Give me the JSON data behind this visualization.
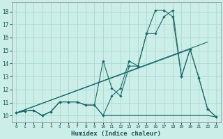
{
  "xlabel": "Humidex (Indice chaleur)",
  "background_color": "#cceee8",
  "grid_color": "#aad8d0",
  "line_color": "#1a6b6b",
  "xlim": [
    -0.5,
    23.5
  ],
  "ylim": [
    9.5,
    18.7
  ],
  "xticks": [
    0,
    1,
    2,
    3,
    4,
    5,
    6,
    7,
    8,
    9,
    10,
    11,
    12,
    13,
    14,
    15,
    16,
    17,
    18,
    19,
    20,
    21,
    22,
    23
  ],
  "yticks": [
    10,
    11,
    12,
    13,
    14,
    15,
    16,
    17,
    18
  ],
  "curve1_x": [
    0,
    1,
    2,
    3,
    4,
    5,
    6,
    7,
    8,
    9,
    10,
    11,
    12,
    13,
    14,
    15,
    16,
    17,
    18,
    19,
    20,
    21,
    22,
    23
  ],
  "curve1_y": [
    10.2,
    10.35,
    10.4,
    10.0,
    10.3,
    11.05,
    11.05,
    11.05,
    10.8,
    10.8,
    10.0,
    11.5,
    12.1,
    14.2,
    13.8,
    16.3,
    18.1,
    18.1,
    17.6,
    13.0,
    15.1,
    12.9,
    10.5,
    9.9
  ],
  "curve2_x": [
    0,
    1,
    2,
    3,
    4,
    5,
    6,
    7,
    8,
    9,
    10,
    11,
    12,
    13,
    14,
    15,
    16,
    17,
    18,
    19,
    20,
    21,
    22,
    23
  ],
  "curve2_y": [
    10.2,
    10.35,
    10.4,
    10.0,
    10.3,
    11.05,
    11.05,
    11.05,
    10.8,
    10.8,
    10.0,
    10.0,
    10.0,
    10.0,
    10.0,
    10.0,
    10.0,
    10.0,
    10.0,
    10.0,
    10.0,
    10.0,
    10.0,
    9.9
  ],
  "trendline1_x": [
    0,
    20
  ],
  "trendline1_y": [
    10.2,
    15.1
  ],
  "trendline2_x": [
    0,
    22
  ],
  "trendline2_y": [
    10.2,
    15.65
  ],
  "curve3_x": [
    0,
    1,
    2,
    3,
    4,
    5,
    6,
    7,
    8,
    9,
    10,
    11,
    12,
    13,
    14,
    15,
    16,
    17,
    18,
    19,
    20,
    21,
    22,
    23
  ],
  "curve3_y": [
    10.2,
    10.35,
    10.4,
    10.0,
    10.3,
    11.05,
    11.05,
    11.05,
    10.8,
    10.8,
    14.2,
    12.1,
    11.5,
    13.8,
    13.8,
    16.3,
    16.3,
    17.6,
    18.1,
    13.0,
    15.1,
    12.9,
    10.5,
    9.9
  ]
}
